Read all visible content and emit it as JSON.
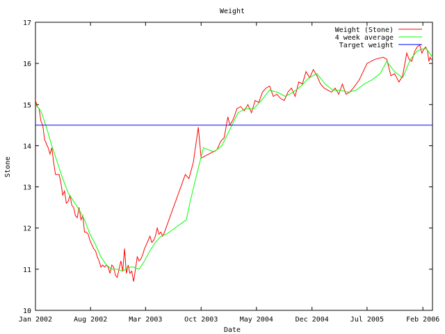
{
  "chart_data": {
    "type": "line",
    "title": "Weight",
    "xlabel": "Date",
    "ylabel": "Stone",
    "ylim": [
      10,
      17
    ],
    "yticks": [
      10,
      11,
      12,
      13,
      14,
      15,
      16,
      17
    ],
    "xlim": [
      "2002-01-01",
      "2006-03-10"
    ],
    "xticks": [
      {
        "label": "Jan 2002",
        "date": "2002-01-01"
      },
      {
        "label": "Aug 2002",
        "date": "2002-08-01"
      },
      {
        "label": "Mar 2003",
        "date": "2003-03-01"
      },
      {
        "label": "Oct 2003",
        "date": "2003-10-01"
      },
      {
        "label": "May 2004",
        "date": "2004-05-01"
      },
      {
        "label": "Dec 2004",
        "date": "2004-12-01"
      },
      {
        "label": "Jul 2005",
        "date": "2005-07-01"
      },
      {
        "label": "Feb 2006",
        "date": "2006-02-01"
      }
    ],
    "legend_position": "top-right",
    "series": [
      {
        "name": "Weight (Stone)",
        "color": "#ff0000",
        "points": [
          [
            "2002-01-01",
            15.1
          ],
          [
            "2002-01-08",
            14.95
          ],
          [
            "2002-01-15",
            14.9
          ],
          [
            "2002-01-22",
            14.6
          ],
          [
            "2002-01-29",
            14.5
          ],
          [
            "2002-02-05",
            14.15
          ],
          [
            "2002-02-12",
            14.05
          ],
          [
            "2002-02-19",
            13.95
          ],
          [
            "2002-02-26",
            13.8
          ],
          [
            "2002-03-05",
            13.95
          ],
          [
            "2002-03-12",
            13.6
          ],
          [
            "2002-03-19",
            13.3
          ],
          [
            "2002-03-26",
            13.3
          ],
          [
            "2002-04-02",
            13.3
          ],
          [
            "2002-04-09",
            13.1
          ],
          [
            "2002-04-16",
            12.8
          ],
          [
            "2002-04-23",
            12.9
          ],
          [
            "2002-04-30",
            12.6
          ],
          [
            "2002-05-07",
            12.65
          ],
          [
            "2002-05-14",
            12.8
          ],
          [
            "2002-05-21",
            12.55
          ],
          [
            "2002-05-28",
            12.5
          ],
          [
            "2002-06-04",
            12.3
          ],
          [
            "2002-06-11",
            12.25
          ],
          [
            "2002-06-18",
            12.5
          ],
          [
            "2002-06-25",
            12.2
          ],
          [
            "2002-07-02",
            12.3
          ],
          [
            "2002-07-09",
            11.9
          ],
          [
            "2002-07-16",
            11.9
          ],
          [
            "2002-07-23",
            11.85
          ],
          [
            "2002-07-30",
            11.7
          ],
          [
            "2002-08-06",
            11.6
          ],
          [
            "2002-08-13",
            11.5
          ],
          [
            "2002-08-20",
            11.45
          ],
          [
            "2002-08-27",
            11.3
          ],
          [
            "2002-09-03",
            11.2
          ],
          [
            "2002-09-10",
            11.05
          ],
          [
            "2002-09-17",
            11.1
          ],
          [
            "2002-09-24",
            11.05
          ],
          [
            "2002-10-01",
            11.1
          ],
          [
            "2002-10-08",
            11.05
          ],
          [
            "2002-10-15",
            10.9
          ],
          [
            "2002-10-22",
            11.1
          ],
          [
            "2002-10-29",
            11.05
          ],
          [
            "2002-11-05",
            10.85
          ],
          [
            "2002-11-12",
            10.8
          ],
          [
            "2002-11-19",
            11.0
          ],
          [
            "2002-11-26",
            11.2
          ],
          [
            "2002-12-03",
            10.95
          ],
          [
            "2002-12-10",
            11.5
          ],
          [
            "2002-12-17",
            10.9
          ],
          [
            "2002-12-24",
            11.1
          ],
          [
            "2002-12-31",
            10.9
          ],
          [
            "2003-01-07",
            10.95
          ],
          [
            "2003-01-14",
            10.7
          ],
          [
            "2003-01-21",
            11.0
          ],
          [
            "2003-01-28",
            11.3
          ],
          [
            "2003-02-04",
            11.2
          ],
          [
            "2003-02-11",
            11.25
          ],
          [
            "2003-02-18",
            11.35
          ],
          [
            "2003-02-25",
            11.5
          ],
          [
            "2003-03-04",
            11.6
          ],
          [
            "2003-03-11",
            11.7
          ],
          [
            "2003-03-18",
            11.8
          ],
          [
            "2003-03-25",
            11.65
          ],
          [
            "2003-04-01",
            11.7
          ],
          [
            "2003-04-08",
            11.8
          ],
          [
            "2003-04-15",
            12.0
          ],
          [
            "2003-04-22",
            11.85
          ],
          [
            "2003-04-29",
            11.9
          ],
          [
            "2003-05-06",
            11.8
          ],
          [
            "2003-05-13",
            11.9
          ],
          [
            "2003-08-01",
            13.3
          ],
          [
            "2003-08-15",
            13.2
          ],
          [
            "2003-09-01",
            13.6
          ],
          [
            "2003-09-20",
            14.45
          ],
          [
            "2003-10-01",
            13.7
          ],
          [
            "2003-11-15",
            13.85
          ],
          [
            "2003-12-01",
            13.9
          ],
          [
            "2003-12-15",
            14.1
          ],
          [
            "2003-12-29",
            14.2
          ],
          [
            "2004-01-12",
            14.7
          ],
          [
            "2004-01-20",
            14.5
          ],
          [
            "2004-02-02",
            14.65
          ],
          [
            "2004-02-16",
            14.9
          ],
          [
            "2004-03-01",
            14.95
          ],
          [
            "2004-03-15",
            14.85
          ],
          [
            "2004-03-29",
            15.0
          ],
          [
            "2004-04-12",
            14.8
          ],
          [
            "2004-04-26",
            15.1
          ],
          [
            "2004-05-10",
            15.05
          ],
          [
            "2004-05-24",
            15.3
          ],
          [
            "2004-06-07",
            15.4
          ],
          [
            "2004-06-21",
            15.45
          ],
          [
            "2004-07-05",
            15.2
          ],
          [
            "2004-07-19",
            15.25
          ],
          [
            "2004-08-02",
            15.15
          ],
          [
            "2004-08-16",
            15.1
          ],
          [
            "2004-08-30",
            15.3
          ],
          [
            "2004-09-13",
            15.4
          ],
          [
            "2004-09-27",
            15.2
          ],
          [
            "2004-10-11",
            15.55
          ],
          [
            "2004-10-25",
            15.5
          ],
          [
            "2004-11-08",
            15.8
          ],
          [
            "2004-11-22",
            15.65
          ],
          [
            "2004-12-06",
            15.85
          ],
          [
            "2004-12-20",
            15.7
          ],
          [
            "2005-01-03",
            15.5
          ],
          [
            "2005-01-17",
            15.4
          ],
          [
            "2005-01-31",
            15.35
          ],
          [
            "2005-02-14",
            15.3
          ],
          [
            "2005-02-28",
            15.4
          ],
          [
            "2005-03-14",
            15.25
          ],
          [
            "2005-03-28",
            15.5
          ],
          [
            "2005-04-11",
            15.25
          ],
          [
            "2005-04-25",
            15.3
          ],
          [
            "2005-05-09",
            15.4
          ],
          [
            "2005-06-01",
            15.6
          ],
          [
            "2005-07-01",
            16.0
          ],
          [
            "2005-08-01",
            16.1
          ],
          [
            "2005-09-01",
            16.15
          ],
          [
            "2005-09-15",
            16.1
          ],
          [
            "2005-10-01",
            15.7
          ],
          [
            "2005-10-15",
            15.75
          ],
          [
            "2005-11-01",
            15.55
          ],
          [
            "2005-11-15",
            15.7
          ],
          [
            "2005-12-01",
            16.25
          ],
          [
            "2005-12-10",
            16.1
          ],
          [
            "2005-12-20",
            16.05
          ],
          [
            "2006-01-01",
            16.3
          ],
          [
            "2006-01-10",
            16.4
          ],
          [
            "2006-01-20",
            16.45
          ],
          [
            "2006-01-28",
            16.25
          ],
          [
            "2006-02-05",
            16.35
          ],
          [
            "2006-02-12",
            16.4
          ],
          [
            "2006-02-19",
            16.3
          ],
          [
            "2006-02-24",
            16.05
          ],
          [
            "2006-03-01",
            16.15
          ],
          [
            "2006-03-05",
            16.1
          ],
          [
            "2006-03-10",
            16.1
          ]
        ]
      },
      {
        "name": "4 week average",
        "color": "#00ff00",
        "points": [
          [
            "2002-01-01",
            15.0
          ],
          [
            "2002-01-22",
            14.85
          ],
          [
            "2002-02-12",
            14.45
          ],
          [
            "2002-03-05",
            14.0
          ],
          [
            "2002-03-26",
            13.6
          ],
          [
            "2002-04-16",
            13.2
          ],
          [
            "2002-05-07",
            12.85
          ],
          [
            "2002-05-28",
            12.65
          ],
          [
            "2002-06-18",
            12.45
          ],
          [
            "2002-07-09",
            12.2
          ],
          [
            "2002-07-30",
            11.85
          ],
          [
            "2002-08-20",
            11.6
          ],
          [
            "2002-09-10",
            11.3
          ],
          [
            "2002-10-01",
            11.1
          ],
          [
            "2002-10-22",
            11.0
          ],
          [
            "2002-11-12",
            11.0
          ],
          [
            "2002-12-03",
            10.95
          ],
          [
            "2002-12-24",
            11.05
          ],
          [
            "2003-01-14",
            11.05
          ],
          [
            "2003-02-04",
            11.0
          ],
          [
            "2003-02-25",
            11.2
          ],
          [
            "2003-03-18",
            11.45
          ],
          [
            "2003-04-08",
            11.65
          ],
          [
            "2003-04-29",
            11.8
          ],
          [
            "2003-05-20",
            11.85
          ],
          [
            "2003-08-05",
            12.2
          ],
          [
            "2003-08-20",
            12.65
          ],
          [
            "2003-09-10",
            13.2
          ],
          [
            "2003-10-10",
            13.95
          ],
          [
            "2003-11-20",
            13.85
          ],
          [
            "2003-12-20",
            14.0
          ],
          [
            "2004-01-20",
            14.4
          ],
          [
            "2004-02-20",
            14.8
          ],
          [
            "2004-03-20",
            14.9
          ],
          [
            "2004-04-20",
            14.9
          ],
          [
            "2004-05-20",
            15.1
          ],
          [
            "2004-06-20",
            15.35
          ],
          [
            "2004-07-20",
            15.3
          ],
          [
            "2004-08-20",
            15.2
          ],
          [
            "2004-09-20",
            15.3
          ],
          [
            "2004-10-20",
            15.45
          ],
          [
            "2004-11-20",
            15.65
          ],
          [
            "2004-12-20",
            15.75
          ],
          [
            "2005-01-20",
            15.5
          ],
          [
            "2005-02-20",
            15.35
          ],
          [
            "2005-03-20",
            15.35
          ],
          [
            "2005-04-20",
            15.3
          ],
          [
            "2005-05-20",
            15.35
          ],
          [
            "2005-06-20",
            15.5
          ],
          [
            "2005-07-20",
            15.6
          ],
          [
            "2005-08-20",
            15.75
          ],
          [
            "2005-09-15",
            16.05
          ],
          [
            "2005-10-15",
            15.8
          ],
          [
            "2005-11-15",
            15.65
          ],
          [
            "2005-12-15",
            16.1
          ],
          [
            "2006-01-10",
            16.3
          ],
          [
            "2006-01-28",
            16.35
          ],
          [
            "2006-02-15",
            16.35
          ],
          [
            "2006-03-10",
            16.15
          ]
        ]
      },
      {
        "name": "Target weight",
        "color": "#0000ff",
        "constant": 14.5
      }
    ]
  }
}
